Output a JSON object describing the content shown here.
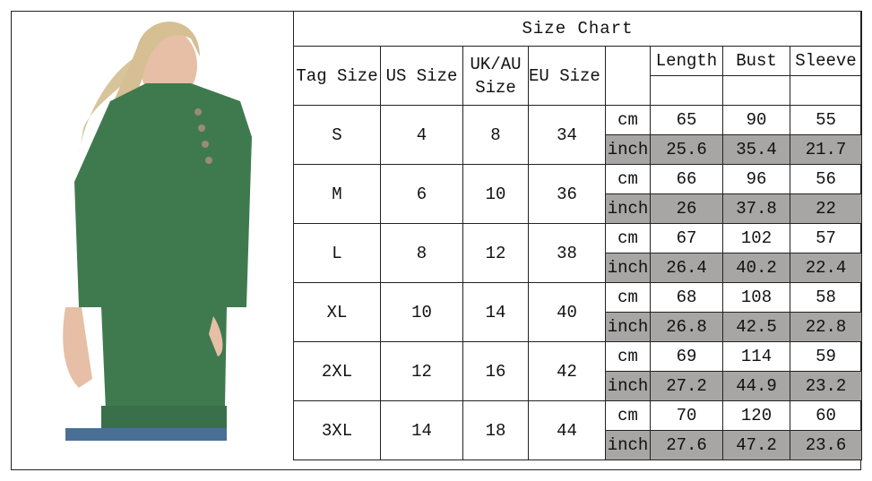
{
  "title": "Size Chart",
  "headers": {
    "tag_size": "Tag Size",
    "us_size": "US Size",
    "uk_au_size": "UK/AU Size",
    "eu_size": "EU Size",
    "length": "Length",
    "bust": "Bust",
    "sleeve": "Sleeve"
  },
  "units": {
    "cm": "cm",
    "inch": "inch"
  },
  "rows": [
    {
      "tag": "S",
      "us": "4",
      "uk": "8",
      "eu": "34",
      "cm": [
        "65",
        "90",
        "55"
      ],
      "inch": [
        "25.6",
        "35.4",
        "21.7"
      ]
    },
    {
      "tag": "M",
      "us": "6",
      "uk": "10",
      "eu": "36",
      "cm": [
        "66",
        "96",
        "56"
      ],
      "inch": [
        "26",
        "37.8",
        "22"
      ]
    },
    {
      "tag": "L",
      "us": "8",
      "uk": "12",
      "eu": "38",
      "cm": [
        "67",
        "102",
        "57"
      ],
      "inch": [
        "26.4",
        "40.2",
        "22.4"
      ]
    },
    {
      "tag": "XL",
      "us": "10",
      "uk": "14",
      "eu": "40",
      "cm": [
        "68",
        "108",
        "58"
      ],
      "inch": [
        "26.8",
        "42.5",
        "22.8"
      ]
    },
    {
      "tag": "2XL",
      "us": "12",
      "uk": "16",
      "eu": "42",
      "cm": [
        "69",
        "114",
        "59"
      ],
      "inch": [
        "27.2",
        "44.9",
        "23.2"
      ]
    },
    {
      "tag": "3XL",
      "us": "14",
      "uk": "18",
      "eu": "44",
      "cm": [
        "70",
        "120",
        "60"
      ],
      "inch": [
        "27.6",
        "47.2",
        "23.6"
      ]
    }
  ],
  "colors": {
    "inch_row_bg": "#a8a5a5",
    "shirt": "#3f7a4f"
  }
}
